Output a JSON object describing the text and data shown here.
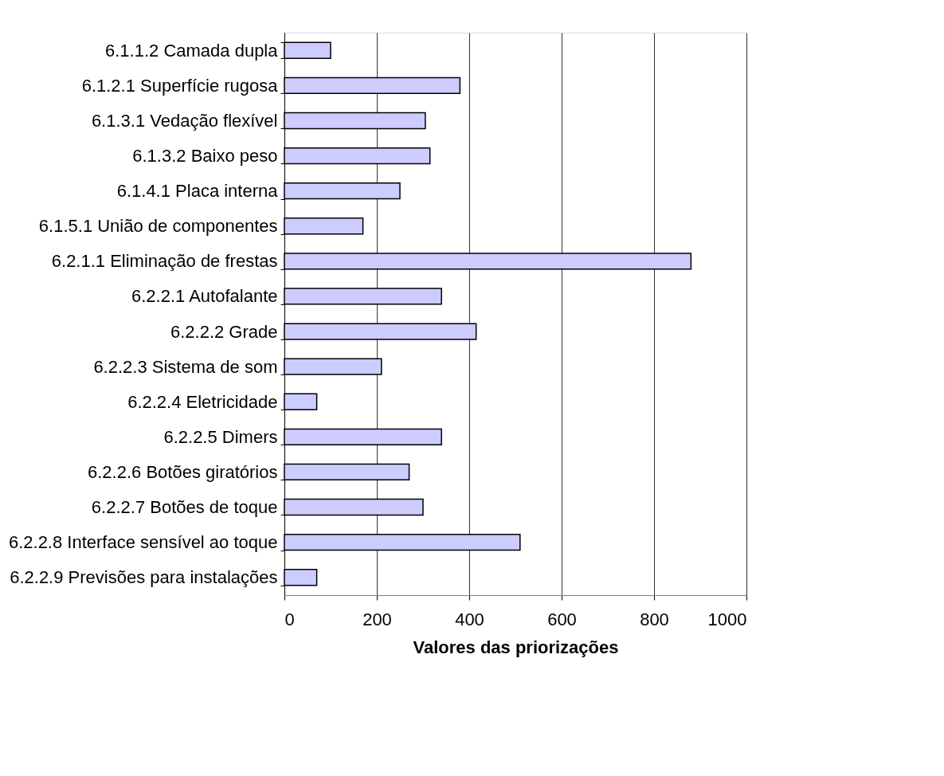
{
  "chart_data": {
    "type": "bar",
    "orientation": "horizontal",
    "xlabel": "Valores das priorizações",
    "categories": [
      "6.1.1.2 Camada dupla",
      "6.1.2.1 Superfície rugosa",
      "6.1.3.1 Vedação flexível",
      "6.1.3.2 Baixo peso",
      "6.1.4.1 Placa interna",
      "6.1.5.1 União de componentes",
      "6.2.1.1 Eliminação de frestas",
      "6.2.2.1 Autofalante",
      "6.2.2.2 Grade",
      "6.2.2.3 Sistema de som ",
      "6.2.2.4 Eletricidade",
      "6.2.2.5 Dimers",
      "6.2.2.6 Botões giratórios",
      "6.2.2.7 Botões de toque",
      "6.2.2.8 Interface sensível ao toque",
      "6.2.2.9 Previsões para instalações"
    ],
    "values": [
      100,
      380,
      305,
      315,
      250,
      170,
      880,
      340,
      415,
      210,
      70,
      340,
      270,
      300,
      510,
      70
    ],
    "color": "#ccccff",
    "xlim": [
      0,
      1000
    ],
    "xticks": [
      0,
      200,
      400,
      600,
      800,
      1000
    ],
    "grid": "x"
  }
}
